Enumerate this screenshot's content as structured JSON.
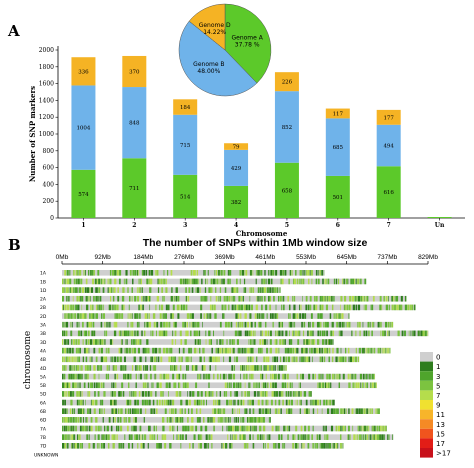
{
  "panels": {
    "a_letter": "A",
    "b_letter": "B"
  },
  "colors": {
    "genome_a": "#5cc92a",
    "genome_b": "#6fb3ea",
    "genome_d": "#f5b324"
  },
  "chart_data": [
    {
      "type": "bar",
      "stacked": true,
      "categories": [
        "1",
        "2",
        "3",
        "4",
        "5",
        "6",
        "7",
        "Un"
      ],
      "series": [
        {
          "name": "Genome A",
          "values": [
            574,
            711,
            514,
            382,
            658,
            501,
            616,
            0
          ],
          "labels": [
            "574",
            "711",
            "514",
            "382",
            "658",
            "501",
            "616",
            ""
          ]
        },
        {
          "name": "Genome B",
          "values": [
            1004,
            848,
            715,
            429,
            852,
            685,
            494,
            0
          ],
          "labels": [
            "1004",
            "848",
            "715",
            "429",
            "852",
            "685",
            "494",
            ""
          ]
        },
        {
          "name": "Genome D",
          "values": [
            336,
            370,
            184,
            79,
            226,
            117,
            177,
            0
          ],
          "labels": [
            "336",
            "370",
            "184",
            "79",
            "226",
            "117",
            "177",
            ""
          ]
        }
      ],
      "xlabel": "Chromosome",
      "ylabel": "Number of SNP markers",
      "ylim": [
        0,
        2000
      ],
      "yticks": [
        "0",
        "200",
        "400",
        "600",
        "800",
        "1000",
        "1200",
        "1400",
        "1600",
        "1800",
        "2000"
      ]
    },
    {
      "type": "pie",
      "slices": [
        {
          "name": "Genome A",
          "value": 37.78,
          "label": "Genome A\n37.78 %"
        },
        {
          "name": "Genome B",
          "value": 48.0,
          "label": "Genome B\n48.00%"
        },
        {
          "name": "Genome D",
          "value": 14.22,
          "label": "Genome D\n14.22%"
        }
      ]
    },
    {
      "type": "heatmap",
      "title": "The number of SNPs within 1Mb window size",
      "xticks": [
        "0Mb",
        "92Mb",
        "184Mb",
        "276Mb",
        "369Mb",
        "461Mb",
        "553Mb",
        "645Mb",
        "737Mb",
        "829Mb"
      ],
      "ylabel": "chromosome",
      "rows": [
        {
          "name": "1A",
          "length": 594
        },
        {
          "name": "1B",
          "length": 689
        },
        {
          "name": "1D",
          "length": 495
        },
        {
          "name": "2A",
          "length": 780
        },
        {
          "name": "2B",
          "length": 801
        },
        {
          "name": "2D",
          "length": 651
        },
        {
          "name": "3A",
          "length": 750
        },
        {
          "name": "3B",
          "length": 830
        },
        {
          "name": "3D",
          "length": 615
        },
        {
          "name": "4A",
          "length": 744
        },
        {
          "name": "4B",
          "length": 673
        },
        {
          "name": "4D",
          "length": 509
        },
        {
          "name": "5A",
          "length": 709
        },
        {
          "name": "5B",
          "length": 713
        },
        {
          "name": "5D",
          "length": 566
        },
        {
          "name": "6A",
          "length": 618
        },
        {
          "name": "6B",
          "length": 720
        },
        {
          "name": "6D",
          "length": 473
        },
        {
          "name": "7A",
          "length": 736
        },
        {
          "name": "7B",
          "length": 750
        },
        {
          "name": "7D",
          "length": 638
        },
        {
          "name": "UNKNOWN",
          "length": 0
        }
      ],
      "legend": [
        {
          "label": "0",
          "color": "#cfcfcf"
        },
        {
          "label": "1",
          "color": "#2e7d1e"
        },
        {
          "label": "3",
          "color": "#4fa52c"
        },
        {
          "label": "5",
          "color": "#7cc340"
        },
        {
          "label": "7",
          "color": "#b5dd4c"
        },
        {
          "label": "9",
          "color": "#f0e130"
        },
        {
          "label": "11",
          "color": "#f7b52a"
        },
        {
          "label": "13",
          "color": "#f58a25"
        },
        {
          "label": "15",
          "color": "#f0541e"
        },
        {
          "label": "17",
          "color": "#e21d17"
        },
        {
          "label": ">17",
          "color": "#c8101a"
        }
      ]
    }
  ]
}
